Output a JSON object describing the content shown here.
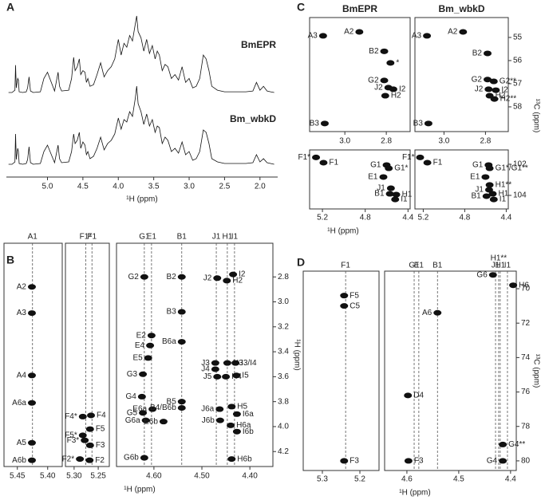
{
  "chart_data": [
    {
      "type": "line",
      "label": "A",
      "xlabel": "¹H (ppm)",
      "xlim": [
        5.58,
        1.75
      ],
      "xticks": [
        {
          "value": 5,
          "label": "5.0"
        },
        4.5,
        {
          "value": 4,
          "label": "4.0"
        },
        3.5,
        {
          "value": 3,
          "label": "3.0"
        },
        2.5,
        {
          "value": 2,
          "label": "2.0"
        }
      ],
      "ylim": [
        0,
        100
      ],
      "x": [
        5.55,
        5.5,
        5.46,
        5.45,
        5.44,
        5.42,
        5.41,
        5.4,
        5.35,
        5.3,
        5.28,
        5.26,
        5.24,
        5.2,
        5.1,
        5.05,
        5,
        4.9,
        4.85,
        4.83,
        4.8,
        4.7,
        4.66,
        4.63,
        4.61,
        4.58,
        4.55,
        4.53,
        4.5,
        4.47,
        4.45,
        4.43,
        4.4,
        4.35,
        4.3,
        4.25,
        4.2,
        4.15,
        4.1,
        4.05,
        4,
        3.96,
        3.92,
        3.88,
        3.84,
        3.8,
        3.76,
        3.74,
        3.72,
        3.68,
        3.64,
        3.6,
        3.56,
        3.52,
        3.48,
        3.45,
        3.42,
        3.38,
        3.34,
        3.3,
        3.25,
        3.2,
        3.15,
        3.1,
        3.05,
        3,
        2.95,
        2.9,
        2.85,
        2.8,
        2.76,
        2.72,
        2.68,
        2.6,
        2.5,
        2.4,
        2.3,
        2.2,
        2.1,
        2.05,
        2,
        1.95,
        1.9,
        1.85,
        1.8
      ],
      "series": [
        {
          "name": "BmEPR",
          "color": "#111111",
          "values": [
            2,
            2,
            5,
            37,
            8,
            20,
            18,
            3,
            2,
            3,
            8,
            22,
            4,
            2,
            3,
            20,
            28,
            4,
            28,
            10,
            4,
            5,
            20,
            47,
            30,
            35,
            45,
            25,
            30,
            28,
            15,
            20,
            10,
            12,
            25,
            40,
            22,
            30,
            35,
            45,
            70,
            50,
            65,
            60,
            75,
            68,
            90,
            100,
            80,
            72,
            55,
            70,
            52,
            62,
            45,
            55,
            50,
            30,
            38,
            35,
            20,
            25,
            18,
            35,
            15,
            20,
            8,
            10,
            20,
            50,
            45,
            30,
            10,
            5,
            3,
            3,
            3,
            3,
            4,
            15,
            5,
            10,
            4,
            3,
            2
          ]
        },
        {
          "name": "Bm_wbkD",
          "color": "#111111",
          "values": [
            2,
            2,
            5,
            40,
            8,
            22,
            18,
            3,
            2,
            3,
            8,
            24,
            4,
            2,
            3,
            18,
            26,
            4,
            26,
            9,
            4,
            5,
            18,
            40,
            28,
            32,
            42,
            22,
            30,
            26,
            14,
            18,
            9,
            12,
            22,
            36,
            20,
            28,
            32,
            40,
            60,
            46,
            58,
            55,
            68,
            62,
            85,
            100,
            78,
            68,
            52,
            65,
            50,
            58,
            42,
            50,
            48,
            28,
            36,
            32,
            18,
            22,
            16,
            30,
            14,
            18,
            7,
            9,
            18,
            45,
            42,
            28,
            9,
            5,
            3,
            3,
            3,
            3,
            4,
            14,
            5,
            9,
            4,
            3,
            2
          ]
        }
      ]
    },
    {
      "type": "scatter",
      "label": "B",
      "xlabel": "¹H (ppm)",
      "ylabel": "¹H (ppm)",
      "color": "#111111",
      "rows": [
        {
          "ylim": [
            2.53,
            4.32
          ],
          "yticks": [
            2.8,
            {
              "value": 3,
              "label": "3.0"
            },
            3.2,
            3.4,
            3.6,
            3.8,
            {
              "value": 4,
              "label": "4.0"
            },
            4.2
          ],
          "panels": [
            {
              "xlim": [
                5.472,
                5.376
              ],
              "xticks": [
                5.45,
                {
                  "value": 5.4,
                  "label": "5.40"
                }
              ],
              "columns": {
                "labels": [
                  "A1"
                ],
                "x": [
                  5.425
                ]
              },
              "peaks": {
                "labels": [
                  "A2",
                  "A3",
                  "A4",
                  "A6a",
                  "A5",
                  "A6b"
                ],
                "x": [
                  5.426,
                  5.426,
                  5.426,
                  5.426,
                  5.426,
                  5.426
                ],
                "y": [
                  2.88,
                  3.09,
                  3.59,
                  3.81,
                  4.13,
                  4.27
                ]
              }
            },
            {
              "xlim": [
                5.318,
                5.227
              ],
              "xticks": [
                {
                  "value": 5.3,
                  "label": "5.30"
                },
                5.25
              ],
              "columns": {
                "labels": [
                  "F1*",
                  "F1"
                ],
                "x": [
                  5.276,
                  5.263
                ]
              },
              "peaks": {
                "labels": [
                  "F4*",
                  "F4",
                  "F5",
                  "F5*",
                  "F3*",
                  "F3",
                  "F2*",
                  "F2"
                ],
                "x": [
                  5.282,
                  5.265,
                  5.267,
                  5.282,
                  5.278,
                  5.267,
                  5.288,
                  5.268
                ],
                "y": [
                  3.92,
                  3.91,
                  4.02,
                  4.07,
                  4.11,
                  4.15,
                  4.26,
                  4.27
                ]
              }
            },
            {
              "xlim": [
                4.678,
                4.352
              ],
              "xticks": [
                {
                  "value": 4.6,
                  "label": "4.60"
                },
                {
                  "value": 4.5,
                  "label": "4.50"
                },
                {
                  "value": 4.4,
                  "label": "4.40"
                }
              ],
              "columns": {
                "labels": [
                  "G1",
                  "E1",
                  "B1",
                  "J1",
                  "H1",
                  "I1"
                ],
                "x": [
                  4.62,
                  4.605,
                  4.542,
                  4.47,
                  4.447,
                  4.432
                ]
              },
              "peaks": {
                "labels": [
                  "G2",
                  "B2",
                  "J2",
                  "H2",
                  "I2",
                  "B3",
                  "E2",
                  "E4",
                  "E5",
                  "B6a",
                  "G3",
                  "G4",
                  "G5",
                  "G6a",
                  "E6a",
                  "E6b",
                  "B5",
                  "B4/B6b",
                  "G6b",
                  "J3",
                  "J4",
                  "J5",
                  "H3",
                  "H4",
                  "I3/I4",
                  "I5",
                  "H5",
                  "J6a",
                  "J6b",
                  "I6a",
                  "H6a",
                  "I6b",
                  "H6b"
                ],
                "x": [
                  4.62,
                  4.542,
                  4.468,
                  4.448,
                  4.435,
                  4.542,
                  4.605,
                  4.608,
                  4.612,
                  4.542,
                  4.623,
                  4.625,
                  4.623,
                  4.617,
                  4.603,
                  4.58,
                  4.542,
                  4.542,
                  4.62,
                  4.472,
                  4.472,
                  4.468,
                  4.447,
                  4.45,
                  4.43,
                  4.428,
                  4.438,
                  4.463,
                  4.462,
                  4.427,
                  4.44,
                  4.427,
                  4.438
                ],
                "y": [
                  2.8,
                  2.8,
                  2.81,
                  2.83,
                  2.78,
                  3.08,
                  3.27,
                  3.35,
                  3.45,
                  3.32,
                  3.58,
                  3.76,
                  3.89,
                  3.95,
                  3.86,
                  3.96,
                  3.8,
                  3.85,
                  4.25,
                  3.49,
                  3.54,
                  3.6,
                  3.49,
                  3.6,
                  3.49,
                  3.59,
                  3.84,
                  3.86,
                  3.95,
                  3.9,
                  3.99,
                  4.04,
                  4.26
                ]
              }
            }
          ]
        }
      ]
    },
    {
      "type": "scatter",
      "label": "C",
      "xlabel": "¹H (ppm)",
      "ylabel": "¹³C (ppm)",
      "color": "#111111",
      "rows": [
        {
          "ylim": [
            54.14,
            59.07
          ],
          "yticks": [
            55,
            56,
            57,
            58
          ],
          "panels": [
            {
              "title": "BmEPR",
              "xlim": [
                3.17,
                2.685
              ],
              "xticks": [
                {
                  "value": 3,
                  "label": "3.0"
                },
                2.8
              ],
              "peaks": {
                "labels": [
                  "A3",
                  "A2",
                  "B2",
                  "*",
                  "G2",
                  "J2",
                  "I2",
                  "H2",
                  "B3"
                ],
                "x": [
                  3.105,
                  2.93,
                  2.81,
                  2.78,
                  2.81,
                  2.79,
                  2.766,
                  2.805,
                  3.097
                ],
                "y": [
                  54.93,
                  54.76,
                  55.6,
                  56.1,
                  56.86,
                  57.17,
                  57.24,
                  57.52,
                  58.72
                ]
              }
            },
            {
              "title": "Bm_wbkD",
              "xlim": [
                3.14,
                2.69
              ],
              "xticks": [
                {
                  "value": 3,
                  "label": "3.0"
                },
                2.8
              ],
              "peaks": {
                "labels": [
                  "A3",
                  "A2",
                  "B2",
                  "G2",
                  "G2**",
                  "J2",
                  "I2",
                  "H2",
                  "H2**",
                  "B3"
                ],
                "x": [
                  3.082,
                  2.908,
                  2.79,
                  2.79,
                  2.76,
                  2.785,
                  2.75,
                  2.78,
                  2.757,
                  3.075
                ],
                "y": [
                  54.93,
                  54.76,
                  55.69,
                  56.82,
                  56.9,
                  57.24,
                  57.28,
                  57.52,
                  57.66,
                  58.72
                ]
              }
            }
          ]
        },
        {
          "ylim": [
            101.08,
            104.87
          ],
          "yticks": [
            102,
            104
          ],
          "panels": [
            {
              "xlim": [
                5.32,
                4.38
              ],
              "xticks": [
                5.2,
                4.8,
                4.4
              ],
              "peaks": {
                "labels": [
                  "F1*",
                  "F1",
                  "G1",
                  "G1*",
                  "E1",
                  "J1",
                  "B1",
                  "H1",
                  "I1"
                ],
                "x": [
                  5.26,
                  5.19,
                  4.6,
                  4.58,
                  4.63,
                  4.56,
                  4.57,
                  4.51,
                  4.52
                ],
                "y": [
                  101.56,
                  101.9,
                  102.05,
                  102.26,
                  102.82,
                  103.54,
                  103.9,
                  103.95,
                  104.26
                ]
              }
            },
            {
              "xlim": [
                5.28,
                4.38
              ],
              "xticks": [
                5.2,
                4.8,
                4.4
              ],
              "peaks": {
                "labels": [
                  "F1*",
                  "F1",
                  "G1",
                  "G1*/G1**",
                  "E1",
                  "H1**",
                  "J1",
                  "B1",
                  "H1",
                  "I1"
                ],
                "x": [
                  5.23,
                  5.16,
                  4.57,
                  4.56,
                  4.6,
                  4.56,
                  4.565,
                  4.59,
                  4.53,
                  4.52
                ],
                "y": [
                  101.56,
                  101.9,
                  102.05,
                  102.26,
                  102.82,
                  103.33,
                  103.64,
                  104.05,
                  103.9,
                  104.26
                ]
              }
            }
          ]
        }
      ]
    },
    {
      "type": "scatter",
      "label": "D",
      "xlabel": "¹H (ppm)",
      "ylabel": "¹³C (ppm)",
      "color": "#111111",
      "rows": [
        {
          "ylim": [
            68.98,
            80.56
          ],
          "yticks": [
            70,
            72,
            74,
            76,
            78,
            80
          ],
          "panels": [
            {
              "xlim": [
                5.351,
                5.149
              ],
              "xticks": [
                5.3,
                5.2
              ],
              "columns": {
                "labels": [
                  "F1"
                ],
                "x": [
                  5.238
                ]
              },
              "peaks": {
                "labels": [
                  "F5",
                  "C5",
                  "F3"
                ],
                "x": [
                  5.242,
                  5.242,
                  5.242
                ],
                "y": [
                  70.4,
                  71,
                  80
                ]
              }
            },
            {
              "xlim": [
                4.643,
                4.389
              ],
              "xticks": [
                4.6,
                4.5,
                4.4
              ],
              "columns": {
                "labels": [
                  "G1",
                  "E1",
                  "B1",
                  "J1",
                  "H1**",
                  "H1",
                  "I1"
                ],
                "x": [
                  4.586,
                  4.577,
                  4.541,
                  4.429,
                  4.423,
                  4.42,
                  4.406
                ]
              },
              "peaks": {
                "labels": [
                  "D4",
                  "F3",
                  "A6",
                  "G6",
                  "H6",
                  "G4**",
                  "G4"
                ],
                "x": [
                  4.598,
                  4.597,
                  4.541,
                  4.434,
                  4.395,
                  4.415,
                  4.415
                ],
                "y": [
                  76.2,
                  80,
                  71.4,
                  69.2,
                  69.8,
                  79.05,
                  80
                ]
              }
            }
          ]
        }
      ]
    }
  ]
}
